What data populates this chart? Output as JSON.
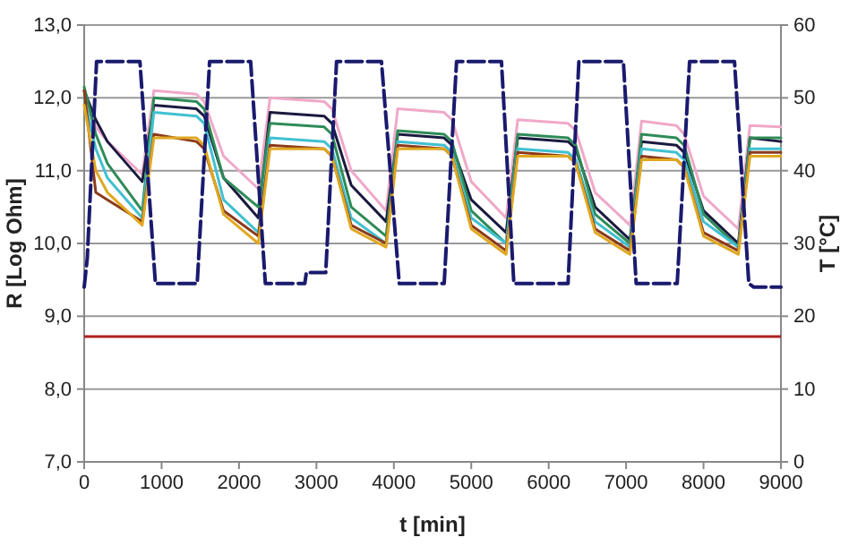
{
  "chart_data": {
    "type": "line",
    "xlabel": "t [min]",
    "ylabel": "R [Log Ohm]",
    "y2label": "T [°C]",
    "xlim": [
      0,
      9000
    ],
    "xticks": [
      0,
      1000,
      2000,
      3000,
      4000,
      5000,
      6000,
      7000,
      8000,
      9000
    ],
    "ylim": [
      7,
      13
    ],
    "yticks": [
      {
        "value": 7,
        "label": "7,0"
      },
      {
        "value": 8,
        "label": "8,0"
      },
      {
        "value": 9,
        "label": "9,0"
      },
      {
        "value": 10,
        "label": "10,0"
      },
      {
        "value": 11,
        "label": "11,0"
      },
      {
        "value": 12,
        "label": "12,0"
      },
      {
        "value": 13,
        "label": "13,0"
      }
    ],
    "y2lim": [
      0,
      60
    ],
    "y2ticks": [
      0,
      10,
      20,
      30,
      40,
      50,
      60
    ],
    "grid": "y",
    "marker": "none",
    "x": [
      0,
      150,
      300,
      750,
      900,
      1450,
      1550,
      1800,
      2250,
      2400,
      3100,
      3200,
      3450,
      3900,
      4050,
      4650,
      4750,
      5000,
      5450,
      5600,
      6250,
      6350,
      6600,
      7050,
      7200,
      7650,
      7750,
      8000,
      8450,
      8600,
      9000
    ],
    "series": [
      {
        "color": "#f0a8c8",
        "values": [
          12.0,
          11.6,
          11.4,
          10.95,
          12.1,
          12.05,
          11.95,
          11.2,
          10.75,
          12.0,
          11.95,
          11.85,
          11.0,
          10.45,
          11.85,
          11.8,
          11.7,
          10.85,
          10.35,
          11.7,
          11.65,
          11.55,
          10.7,
          10.25,
          11.68,
          11.62,
          11.5,
          10.65,
          10.2,
          11.62,
          11.6
        ]
      },
      {
        "color": "#1a1a40",
        "values": [
          12.1,
          11.7,
          11.4,
          10.85,
          11.9,
          11.85,
          11.75,
          10.9,
          10.35,
          11.8,
          11.75,
          11.65,
          10.8,
          10.3,
          11.5,
          11.45,
          11.35,
          10.6,
          10.15,
          11.45,
          11.4,
          11.3,
          10.5,
          10.05,
          11.4,
          11.35,
          11.25,
          10.45,
          10.0,
          11.45,
          11.4
        ]
      },
      {
        "color": "#2e8b57",
        "values": [
          12.15,
          11.5,
          11.1,
          10.45,
          12.0,
          11.95,
          11.85,
          10.9,
          10.5,
          11.65,
          11.6,
          11.5,
          10.5,
          10.1,
          11.55,
          11.5,
          11.4,
          10.45,
          10.0,
          11.5,
          11.45,
          11.35,
          10.4,
          10.0,
          11.5,
          11.45,
          11.35,
          10.4,
          9.95,
          11.45,
          11.45
        ]
      },
      {
        "color": "#40c0d0",
        "values": [
          12.0,
          11.3,
          10.9,
          10.35,
          11.8,
          11.75,
          11.65,
          10.6,
          10.15,
          11.45,
          11.4,
          11.3,
          10.35,
          10.0,
          11.4,
          11.35,
          11.25,
          10.35,
          10.0,
          11.3,
          11.25,
          11.15,
          10.3,
          9.95,
          11.3,
          11.25,
          11.15,
          10.3,
          9.95,
          11.3,
          11.3
        ]
      },
      {
        "color": "#8b3a1a",
        "values": [
          12.1,
          10.7,
          10.6,
          10.3,
          11.5,
          11.4,
          11.3,
          10.45,
          10.1,
          11.35,
          11.3,
          11.2,
          10.25,
          10.0,
          11.35,
          11.3,
          11.2,
          10.25,
          9.9,
          11.25,
          11.2,
          11.1,
          10.2,
          9.9,
          11.2,
          11.15,
          11.05,
          10.15,
          9.9,
          11.25,
          11.25
        ]
      },
      {
        "color": "#e0a820",
        "values": [
          11.9,
          11.0,
          10.7,
          10.25,
          11.45,
          11.45,
          11.35,
          10.4,
          10.0,
          11.3,
          11.3,
          11.2,
          10.2,
          9.95,
          11.3,
          11.3,
          11.2,
          10.2,
          9.85,
          11.2,
          11.2,
          11.1,
          10.15,
          9.85,
          11.15,
          11.15,
          11.05,
          10.1,
          9.85,
          11.2,
          11.2
        ]
      },
      {
        "color": "#1a1a6e",
        "axis": "y2",
        "line_style": "dashed",
        "x": [
          0,
          40,
          160,
          720,
          920,
          1460,
          1620,
          2150,
          2340,
          2850,
          2870,
          3120,
          3260,
          3840,
          4070,
          4650,
          4810,
          5390,
          5550,
          6250,
          6390,
          6965,
          7130,
          7660,
          7820,
          8400,
          8585,
          8650,
          9000
        ],
        "values": [
          24,
          28,
          55,
          55,
          24.5,
          24.5,
          55,
          55,
          24.5,
          24.5,
          26,
          26,
          55,
          55,
          24.5,
          24.5,
          55,
          55,
          24.5,
          24.5,
          55,
          55,
          24.5,
          24.5,
          55,
          55,
          24.5,
          24,
          24
        ]
      }
    ],
    "ref_lines": [
      {
        "axis": "y",
        "value": 8.72,
        "color": "#b02020"
      }
    ]
  }
}
